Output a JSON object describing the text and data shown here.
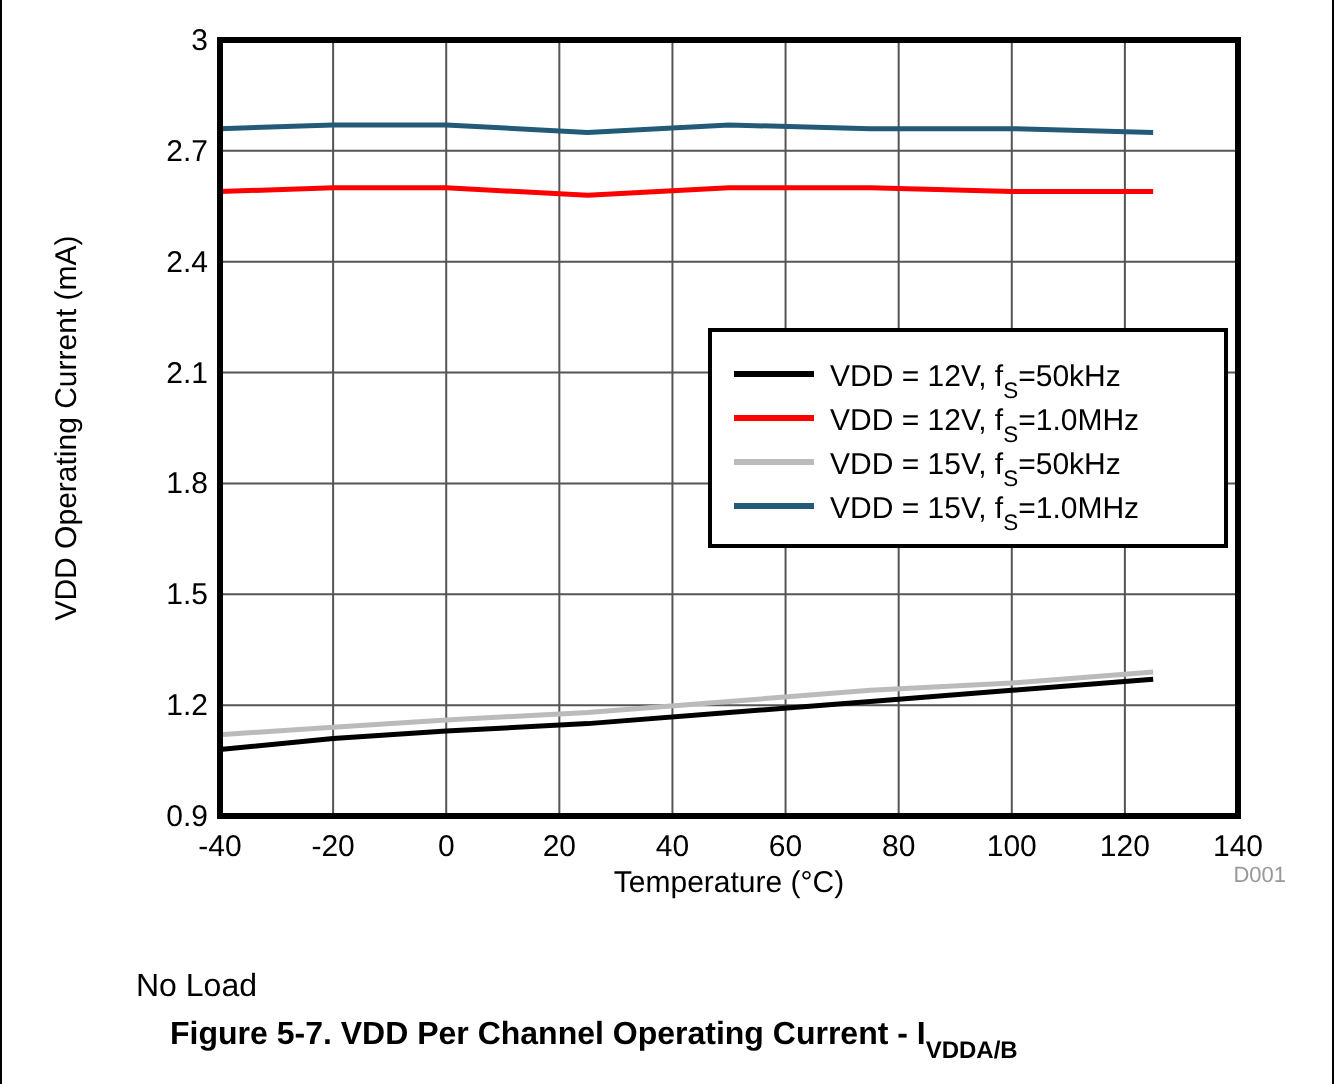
{
  "chart_data": {
    "type": "line",
    "xlabel": "Temperature (°C)",
    "ylabel": "VDD Operating Current (mA)",
    "title": "Figure 5-7. VDD Per Channel Operating Current - I$_{VDDA/B}$",
    "annotations": [
      "D001",
      "No Load"
    ],
    "x": [
      -40,
      -20,
      0,
      25,
      50,
      75,
      100,
      125
    ],
    "xlim": [
      -40,
      140
    ],
    "xticks": [
      -40,
      -20,
      0,
      20,
      40,
      60,
      80,
      100,
      120,
      140
    ],
    "ylim": [
      0.9,
      3
    ],
    "yticks": [
      0.9,
      1.2,
      1.5,
      1.8,
      2.1,
      2.4,
      2.7,
      3
    ],
    "grid": true,
    "legend": "right",
    "series": [
      {
        "name": "VDD = 12V, f$_{S}$=50kHz",
        "color": "#000000",
        "values": [
          1.08,
          1.11,
          1.13,
          1.15,
          1.18,
          1.21,
          1.24,
          1.27
        ]
      },
      {
        "name": "VDD = 12V, f$_{S}$=1.0MHz",
        "color": "#ff0000",
        "values": [
          2.59,
          2.6,
          2.6,
          2.58,
          2.6,
          2.6,
          2.59,
          2.59
        ]
      },
      {
        "name": "VDD = 15V, f$_{S}$=50kHz",
        "color": "#bbbbbb",
        "values": [
          1.12,
          1.14,
          1.16,
          1.18,
          1.21,
          1.24,
          1.26,
          1.29
        ]
      },
      {
        "name": "VDD = 15V, f$_{S}$=1.0MHz",
        "color": "#235a78",
        "values": [
          2.76,
          2.77,
          2.77,
          2.75,
          2.77,
          2.76,
          2.76,
          2.75
        ]
      }
    ]
  }
}
